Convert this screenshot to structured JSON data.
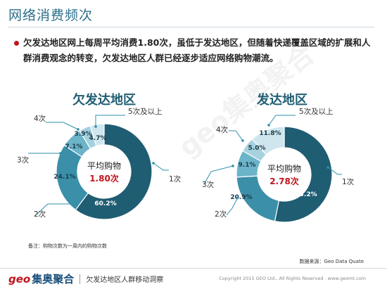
{
  "page": {
    "title": "网络消费频次",
    "description": "欠发达地区网上每周平均消费1.80次，虽低于发达地区，但随着快递覆盖区域的扩展和人群消费观念的转变，欠发达地区人群已经逐步适应网络购物潮流。",
    "footnote": "备注：购物次数为一周内的购物次数",
    "source": "数据来源：Geo Data Quate",
    "watermark": "geo集奥聚合",
    "footer": {
      "logo_en": "geo",
      "logo_cn": "集奥聚合",
      "report": "欠发达地区人群移动洞察",
      "copyright": "Copyright 2015 GEO Ltd., All Rights Reserved .  www.geomt.com"
    }
  },
  "chart_data": [
    {
      "type": "pie",
      "title": "欠发达地区",
      "center_label": "平均购物",
      "center_value": "1.80次",
      "categories": [
        "1次",
        "2次",
        "3次",
        "4次",
        "5次及以上"
      ],
      "values": [
        60.2,
        24.1,
        7.1,
        3.9,
        4.7
      ],
      "value_labels": [
        "60.2%",
        "24.1%",
        "7.1%",
        "3.9%",
        "4.7%"
      ],
      "colors": [
        "#1f5d72",
        "#3b8fa8",
        "#6cb4c9",
        "#a6d1df",
        "#cfe6ee"
      ]
    },
    {
      "type": "pie",
      "title": "发达地区",
      "center_label": "平均购物",
      "center_value": "2.78次",
      "categories": [
        "1次",
        "2次",
        "3次",
        "4次",
        "5次及以上"
      ],
      "values": [
        53.2,
        20.9,
        9.1,
        5.0,
        11.8
      ],
      "value_labels": [
        "53.2%",
        "20.9%",
        "9.1%",
        "5.0%",
        "11.8%"
      ],
      "colors": [
        "#1f5d72",
        "#3b8fa8",
        "#6cb4c9",
        "#a6d1df",
        "#cfe6ee"
      ]
    }
  ],
  "accent": {
    "title": "#2a6f8b",
    "value": "#c0151e",
    "leader": "#2e8fa8"
  }
}
